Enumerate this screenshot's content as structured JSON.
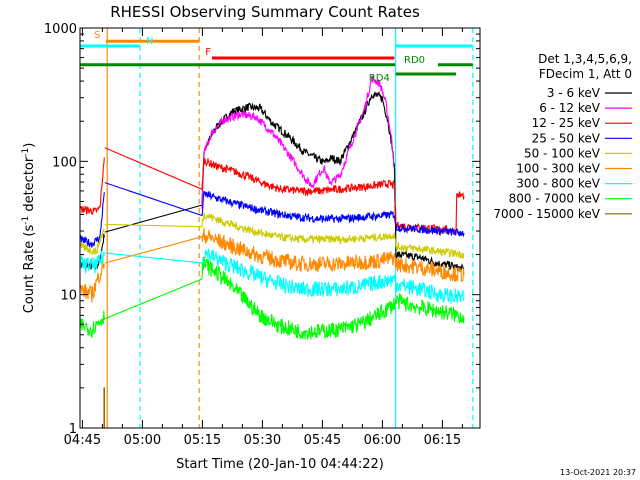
{
  "chart_data": {
    "type": "line",
    "title": "RHESSI Observing Summary Count Rates",
    "xlabel": "Start Time (20-Jan-10 04:44:22)",
    "ylabel_main": "Count Rate (s",
    "ylabel_sup": "-1",
    "ylabel_tail": " detector",
    "ylabel_sup2": "-1",
    "ylabel_end": ")",
    "x_unit": "minutes after 04:44:22 UT",
    "xlim": [
      0,
      100
    ],
    "ylim": [
      1,
      1000
    ],
    "y_scale": "log",
    "x_ticks": [
      {
        "label": "04:45",
        "min": 0.6
      },
      {
        "label": "05:00",
        "min": 15.6
      },
      {
        "label": "05:15",
        "min": 30.6
      },
      {
        "label": "05:30",
        "min": 45.6
      },
      {
        "label": "05:45",
        "min": 60.6
      },
      {
        "label": "06:00",
        "min": 75.6
      },
      {
        "label": "06:15",
        "min": 90.6
      }
    ],
    "y_ticks": [
      {
        "label": "1",
        "value": 1
      },
      {
        "label": "10",
        "value": 10
      },
      {
        "label": "100",
        "value": 100
      },
      {
        "label": "1000",
        "value": 1000
      }
    ],
    "legend": {
      "header1": "Det 1,3,4,5,6,9,",
      "header2": "FDecim 1, Att 0",
      "placement": "right"
    },
    "series": [
      {
        "name": "3 - 6 keV",
        "color": "#000000",
        "points": [
          [
            0,
            17
          ],
          [
            4,
            16
          ],
          [
            5,
            18
          ],
          [
            6.2,
            30
          ],
          [
            30.5,
            48
          ],
          [
            31,
            120
          ],
          [
            34,
            180
          ],
          [
            38,
            235
          ],
          [
            42,
            255
          ],
          [
            45,
            250
          ],
          [
            48,
            195
          ],
          [
            52,
            155
          ],
          [
            56,
            118
          ],
          [
            59,
            105
          ],
          [
            61,
            98
          ],
          [
            63,
            106
          ],
          [
            65,
            100
          ],
          [
            68,
            150
          ],
          [
            71,
            230
          ],
          [
            73,
            320
          ],
          [
            75.5,
            300
          ],
          [
            77,
            200
          ],
          [
            78,
            130
          ],
          [
            78.6,
            90
          ],
          [
            79,
            20
          ],
          [
            85,
            19
          ],
          [
            90,
            17
          ],
          [
            93,
            16.5
          ],
          [
            94,
            16
          ],
          [
            96,
            15.5
          ]
        ]
      },
      {
        "name": "6 - 12 keV",
        "color": "#ff00ff",
        "points": [
          [
            30.5,
            46
          ],
          [
            31,
            115
          ],
          [
            33,
            165
          ],
          [
            36,
            205
          ],
          [
            40,
            225
          ],
          [
            44,
            215
          ],
          [
            48,
            165
          ],
          [
            52,
            115
          ],
          [
            55,
            85
          ],
          [
            57,
            70
          ],
          [
            58,
            66
          ],
          [
            60,
            82
          ],
          [
            61,
            90
          ],
          [
            62,
            72
          ],
          [
            63,
            70
          ],
          [
            65,
            78
          ],
          [
            68,
            140
          ],
          [
            71,
            240
          ],
          [
            73,
            420
          ],
          [
            75,
            380
          ],
          [
            76.5,
            270
          ],
          [
            78,
            140
          ],
          [
            78.6,
            90
          ]
        ]
      },
      {
        "name": "12 - 25 keV",
        "color": "#ff0000",
        "points": [
          [
            0,
            44
          ],
          [
            4,
            42
          ],
          [
            5,
            45
          ],
          [
            6.2,
            120
          ],
          [
            30.5,
            60
          ],
          [
            31,
            102
          ],
          [
            34,
            92
          ],
          [
            38,
            85
          ],
          [
            42,
            77
          ],
          [
            46,
            68
          ],
          [
            50,
            62
          ],
          [
            55,
            60
          ],
          [
            60,
            60
          ],
          [
            65,
            62
          ],
          [
            70,
            64
          ],
          [
            74,
            66
          ],
          [
            77,
            68
          ],
          [
            78.6,
            66
          ],
          [
            79,
            33
          ],
          [
            85,
            32
          ],
          [
            90,
            31
          ],
          [
            94,
            30
          ],
          [
            94.2,
            56
          ],
          [
            96,
            55
          ]
        ]
      },
      {
        "name": "25 - 50 keV",
        "color": "#0000ff",
        "points": [
          [
            0,
            26
          ],
          [
            3,
            24
          ],
          [
            5,
            27
          ],
          [
            6.2,
            65
          ],
          [
            30.5,
            40
          ],
          [
            31,
            57
          ],
          [
            35,
            52
          ],
          [
            40,
            47
          ],
          [
            45,
            43
          ],
          [
            50,
            40
          ],
          [
            55,
            38
          ],
          [
            60,
            37
          ],
          [
            65,
            37
          ],
          [
            70,
            38
          ],
          [
            75,
            39
          ],
          [
            78.6,
            40
          ],
          [
            79,
            32
          ],
          [
            85,
            31
          ],
          [
            90,
            30
          ],
          [
            96,
            29
          ]
        ]
      },
      {
        "name": "50 - 100 keV",
        "color": "#cccc00",
        "points": [
          [
            0,
            23
          ],
          [
            4,
            21
          ],
          [
            6.2,
            32
          ],
          [
            30.5,
            34
          ],
          [
            31,
            40
          ],
          [
            35,
            36
          ],
          [
            40,
            32
          ],
          [
            45,
            29
          ],
          [
            50,
            27
          ],
          [
            55,
            26
          ],
          [
            60,
            26
          ],
          [
            65,
            26
          ],
          [
            70,
            26.5
          ],
          [
            75,
            27
          ],
          [
            78.6,
            28
          ],
          [
            79,
            23
          ],
          [
            85,
            22
          ],
          [
            90,
            21
          ],
          [
            96,
            20
          ]
        ]
      },
      {
        "name": "100 - 300 keV",
        "color": "#ff8800",
        "points": [
          [
            0,
            11
          ],
          [
            3,
            10
          ],
          [
            6.2,
            18
          ],
          [
            30.5,
            25
          ],
          [
            31,
            28
          ],
          [
            35,
            25
          ],
          [
            40,
            22
          ],
          [
            45,
            19.5
          ],
          [
            50,
            18
          ],
          [
            55,
            17
          ],
          [
            60,
            17
          ],
          [
            65,
            17
          ],
          [
            70,
            17.5
          ],
          [
            75,
            18
          ],
          [
            78.6,
            19
          ],
          [
            79,
            17
          ],
          [
            85,
            16
          ],
          [
            90,
            15
          ],
          [
            96,
            14
          ]
        ]
      },
      {
        "name": "300 - 800 keV",
        "color": "#00ffff",
        "points": [
          [
            0,
            17
          ],
          [
            4,
            16.5
          ],
          [
            6.2,
            20
          ],
          [
            30.5,
            18
          ],
          [
            31,
            21
          ],
          [
            35,
            18
          ],
          [
            40,
            15.5
          ],
          [
            45,
            13.5
          ],
          [
            50,
            12
          ],
          [
            55,
            11
          ],
          [
            60,
            11
          ],
          [
            65,
            11
          ],
          [
            70,
            11.5
          ],
          [
            75,
            12.5
          ],
          [
            78.6,
            13
          ],
          [
            79,
            12
          ],
          [
            85,
            11
          ],
          [
            90,
            10
          ],
          [
            96,
            9.5
          ]
        ]
      },
      {
        "name": "800 - 7000 keV",
        "color": "#00ff00",
        "points": [
          [
            0,
            6
          ],
          [
            3,
            5.5
          ],
          [
            6.2,
            7
          ],
          [
            30.5,
            15
          ],
          [
            31,
            17
          ],
          [
            35,
            14
          ],
          [
            40,
            10
          ],
          [
            45,
            7
          ],
          [
            50,
            5.8
          ],
          [
            55,
            5.3
          ],
          [
            60,
            5.3
          ],
          [
            65,
            5.5
          ],
          [
            70,
            6
          ],
          [
            75,
            7.2
          ],
          [
            78.6,
            8.5
          ],
          [
            79,
            9
          ],
          [
            85,
            8
          ],
          [
            90,
            7.5
          ],
          [
            96,
            6.8
          ]
        ]
      },
      {
        "name": "7000 - 15000 keV",
        "color": "#886600",
        "points": [
          [
            6.0,
            1
          ],
          [
            6.0,
            2
          ],
          [
            6.1,
            2
          ],
          [
            6.1,
            1
          ]
        ]
      }
    ],
    "annotations": {
      "solid_vlines": [
        {
          "min": 6.8,
          "color": "#ff8800"
        },
        {
          "min": 78.9,
          "color": "#00ffff"
        }
      ],
      "dashed_vlines": [
        {
          "min": 15.0,
          "color": "#00ffff"
        },
        {
          "min": 29.8,
          "color": "#ff8800"
        },
        {
          "min": 98.2,
          "color": "#00ffff"
        }
      ],
      "bars": [
        {
          "label": "S",
          "color": "#ff8800",
          "start": 6.5,
          "end": 29.8,
          "y": 0.7,
          "label_at": 3.5
        },
        {
          "label": "N",
          "color": "#00ffff",
          "start": 0,
          "end": 15.0,
          "y": 0.4,
          "label_at": 16.5,
          "label_dy": -2
        },
        {
          "label": "",
          "color": "#00ffff",
          "start": 78.9,
          "end": 98.2,
          "y": 0.4
        },
        {
          "label": "F",
          "color": "#ff0000",
          "start": 33.0,
          "end": 78.6,
          "y": 0.6,
          "label_at": 31.3,
          "label_dy": -3
        },
        {
          "label": "",
          "color": "#008800",
          "start": 0,
          "end": 78.8,
          "y": 0.6
        },
        {
          "label": "RD0",
          "color": "#008800",
          "start": 89.5,
          "end": 98.2,
          "y": 0.6,
          "label_at": 81.0,
          "label_dy": -2
        },
        {
          "label": "RD4",
          "color": "#008800",
          "start": 78.9,
          "end": 94.0,
          "y": 0.45,
          "label_at": 72.2,
          "label_dy": 7
        }
      ]
    }
  },
  "footer": {
    "timestamp": "13-Oct-2021 20:37"
  }
}
